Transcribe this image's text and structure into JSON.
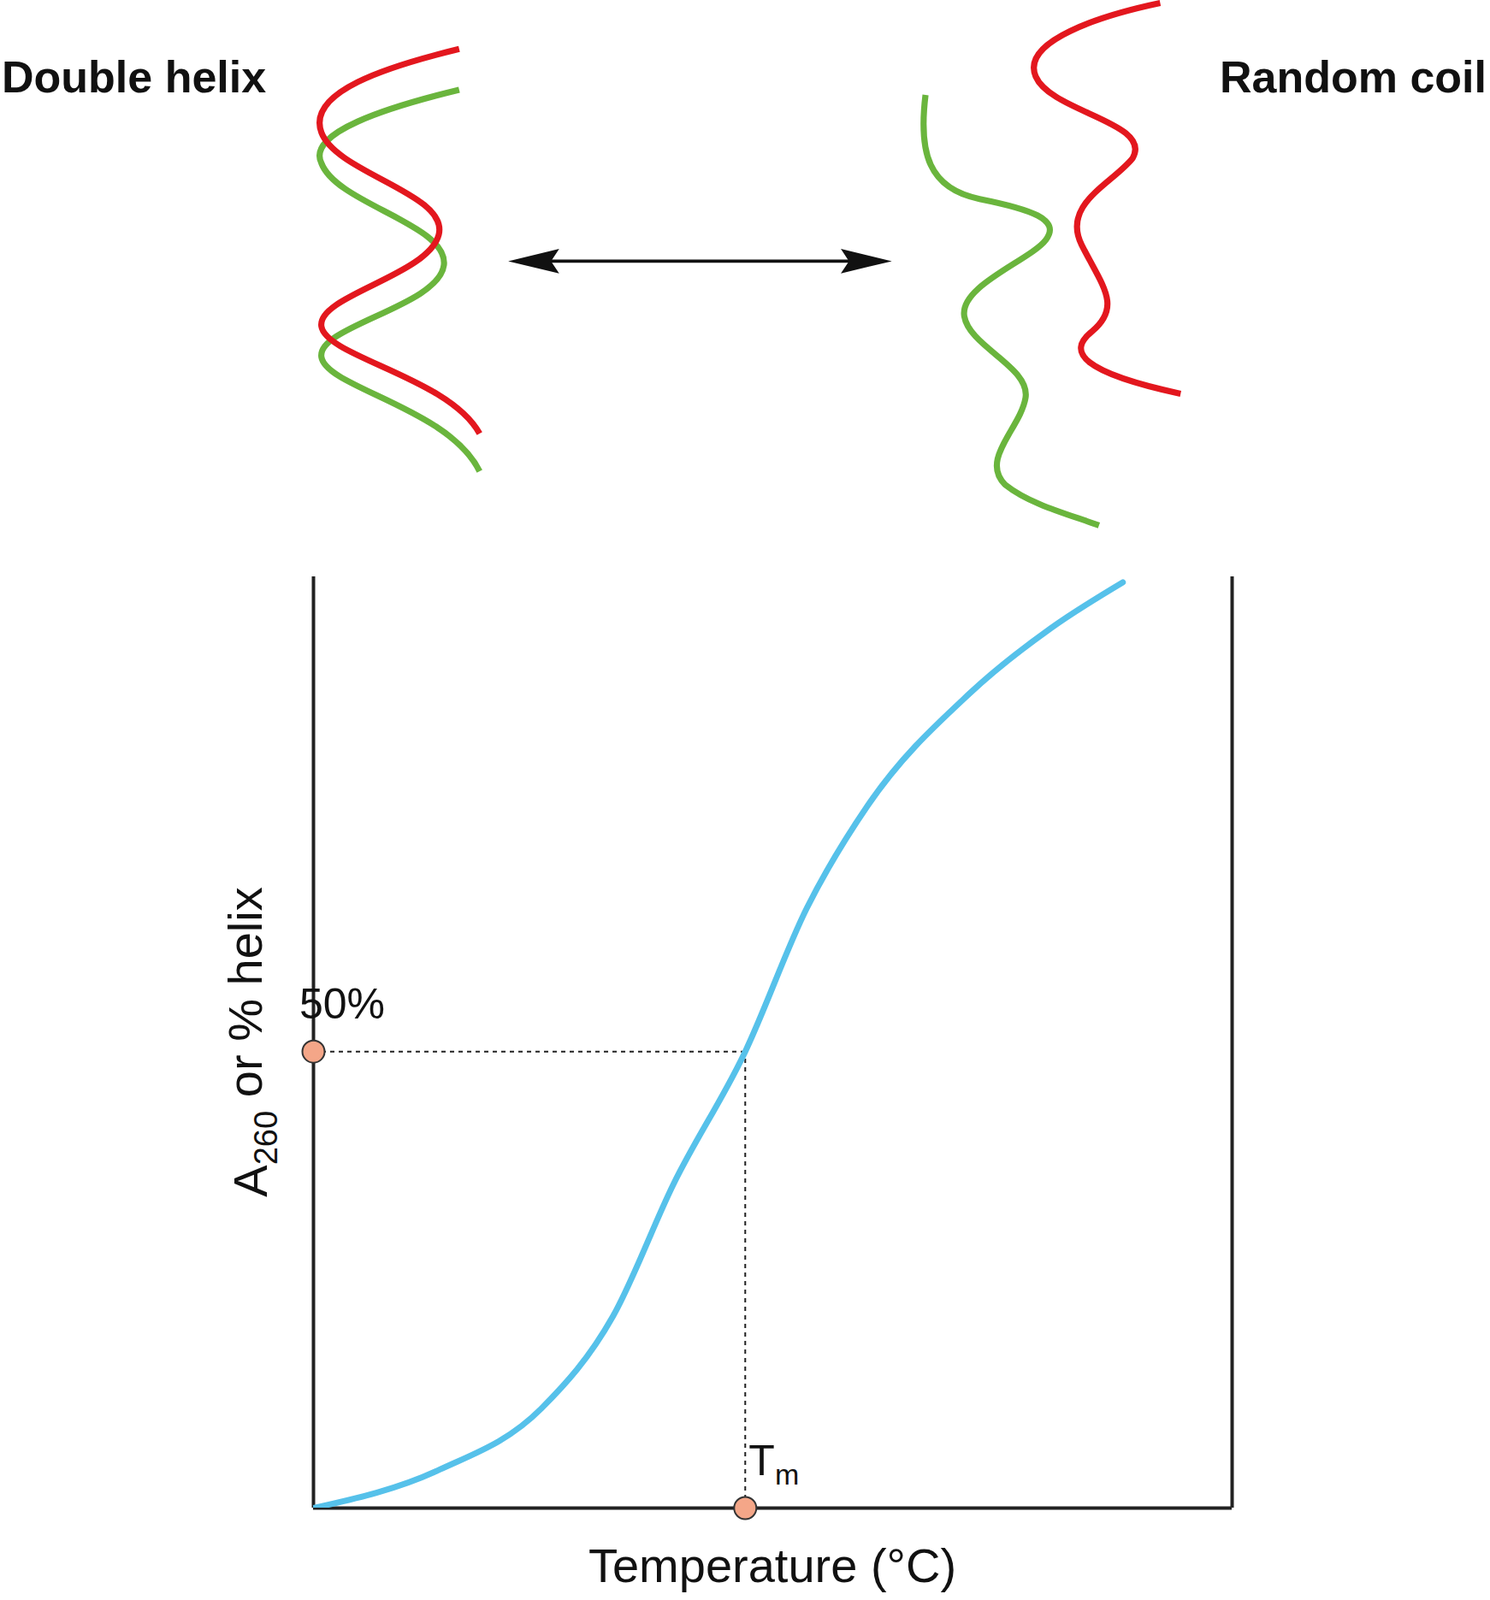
{
  "chart_data": {
    "type": "line",
    "x_label": "Temperature (°C)",
    "y_label": "A260 or % helix",
    "x": [
      0,
      13.7,
      24.8,
      32.6,
      39.2,
      47,
      53.7,
      60.3,
      71.4,
      80.3,
      88.1
    ],
    "values": [
      0,
      4.2,
      10.9,
      21.0,
      35.5,
      50,
      65.7,
      76.9,
      89.2,
      96.4,
      101.4
    ],
    "color": "#56c1ea",
    "xlim": [
      0,
      100
    ],
    "ylim": [
      0,
      102
    ],
    "xticks": [],
    "yticks": [],
    "tick_labels": false,
    "grid": false,
    "annotations": [
      {
        "text": "50%",
        "x": 0,
        "y": 50
      },
      {
        "text": "Tm",
        "x": 47,
        "y": 0
      }
    ]
  },
  "diagram": {
    "left_label": "Double helix",
    "right_label": "Random coil"
  }
}
